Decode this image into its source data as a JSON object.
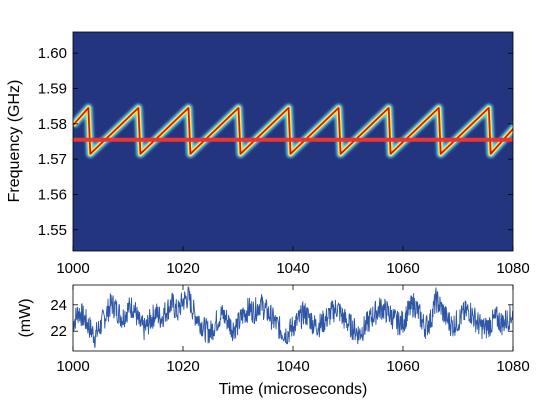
{
  "chart_data": [
    {
      "type": "heatmap",
      "description_kind": "spectrogram",
      "xlabel": "",
      "ylabel": "Frequency (GHz)",
      "xlim": [
        1000,
        1080
      ],
      "ylim": [
        1.544,
        1.606
      ],
      "x_ticks": [
        1000,
        1020,
        1040,
        1060,
        1080
      ],
      "y_ticks": [
        1.55,
        1.56,
        1.57,
        1.58,
        1.59,
        1.6
      ],
      "x_tick_labels": [
        "1000",
        "1020",
        "1040",
        "1060",
        "1080"
      ],
      "y_tick_labels": [
        "1.55",
        "1.56",
        "1.57",
        "1.58",
        "1.59",
        "1.60"
      ],
      "sawtooth": {
        "period": 9.1,
        "drop_times": [
          1002.8,
          1011.9,
          1021.0,
          1030.1,
          1039.2,
          1048.3,
          1057.4,
          1066.5,
          1075.6
        ],
        "low_freq": 1.5715,
        "high_freq": 1.5845
      },
      "reference_line": {
        "frequency": 1.5755,
        "color": "#ee3333"
      },
      "colors": {
        "background": "#23357f",
        "trace_core": "#c81e1e",
        "trace_glow": "#ffe84a",
        "trace_edge": "#5fd6ee"
      },
      "grid": false
    },
    {
      "type": "line",
      "xlabel": "Time (microseconds)",
      "ylabel": "(mW)",
      "xlim": [
        1000,
        1080
      ],
      "ylim": [
        20.5,
        25.5
      ],
      "x_ticks": [
        1000,
        1020,
        1040,
        1060,
        1080
      ],
      "y_ticks": [
        22,
        24
      ],
      "x_tick_labels": [
        "1000",
        "1020",
        "1040",
        "1060",
        "1080"
      ],
      "y_tick_labels": [
        "22",
        "24"
      ],
      "series": [
        {
          "color": "#2e56a6",
          "x": [
            1000,
            1001,
            1002,
            1003,
            1004,
            1005,
            1006,
            1007,
            1008,
            1009,
            1010,
            1011,
            1012,
            1013,
            1014,
            1015,
            1016,
            1017,
            1018,
            1019,
            1020,
            1021,
            1022,
            1023,
            1024,
            1025,
            1026,
            1027,
            1028,
            1029,
            1030,
            1031,
            1032,
            1033,
            1034,
            1035,
            1036,
            1037,
            1038,
            1039,
            1040,
            1041,
            1042,
            1043,
            1044,
            1045,
            1046,
            1047,
            1048,
            1049,
            1050,
            1051,
            1052,
            1053,
            1054,
            1055,
            1056,
            1057,
            1058,
            1059,
            1060,
            1061,
            1062,
            1063,
            1064,
            1065,
            1066,
            1067,
            1068,
            1069,
            1070,
            1071,
            1072,
            1073,
            1074,
            1075,
            1076,
            1077,
            1078,
            1079,
            1080
          ],
          "values": [
            22.6,
            23.5,
            23.0,
            22.3,
            21.6,
            22.4,
            23.3,
            24.1,
            23.6,
            23.0,
            23.7,
            23.9,
            22.6,
            22.1,
            22.8,
            23.4,
            23.0,
            23.6,
            24.1,
            23.4,
            24.3,
            24.6,
            23.4,
            22.8,
            22.1,
            21.9,
            22.7,
            23.3,
            22.9,
            22.2,
            22.5,
            23.3,
            23.7,
            23.5,
            24.1,
            23.6,
            23.1,
            22.5,
            22.0,
            21.8,
            22.4,
            22.8,
            23.4,
            23.0,
            22.4,
            22.5,
            22.9,
            23.4,
            23.8,
            23.1,
            22.6,
            22.2,
            21.8,
            22.3,
            22.9,
            23.4,
            23.8,
            23.5,
            23.1,
            22.6,
            22.7,
            23.5,
            24.1,
            23.2,
            22.3,
            22.8,
            24.4,
            23.7,
            22.9,
            22.4,
            22.8,
            23.3,
            23.6,
            23.0,
            22.4,
            22.2,
            22.6,
            23.0,
            22.6,
            22.9,
            23.3
          ]
        }
      ],
      "grid": false
    }
  ]
}
